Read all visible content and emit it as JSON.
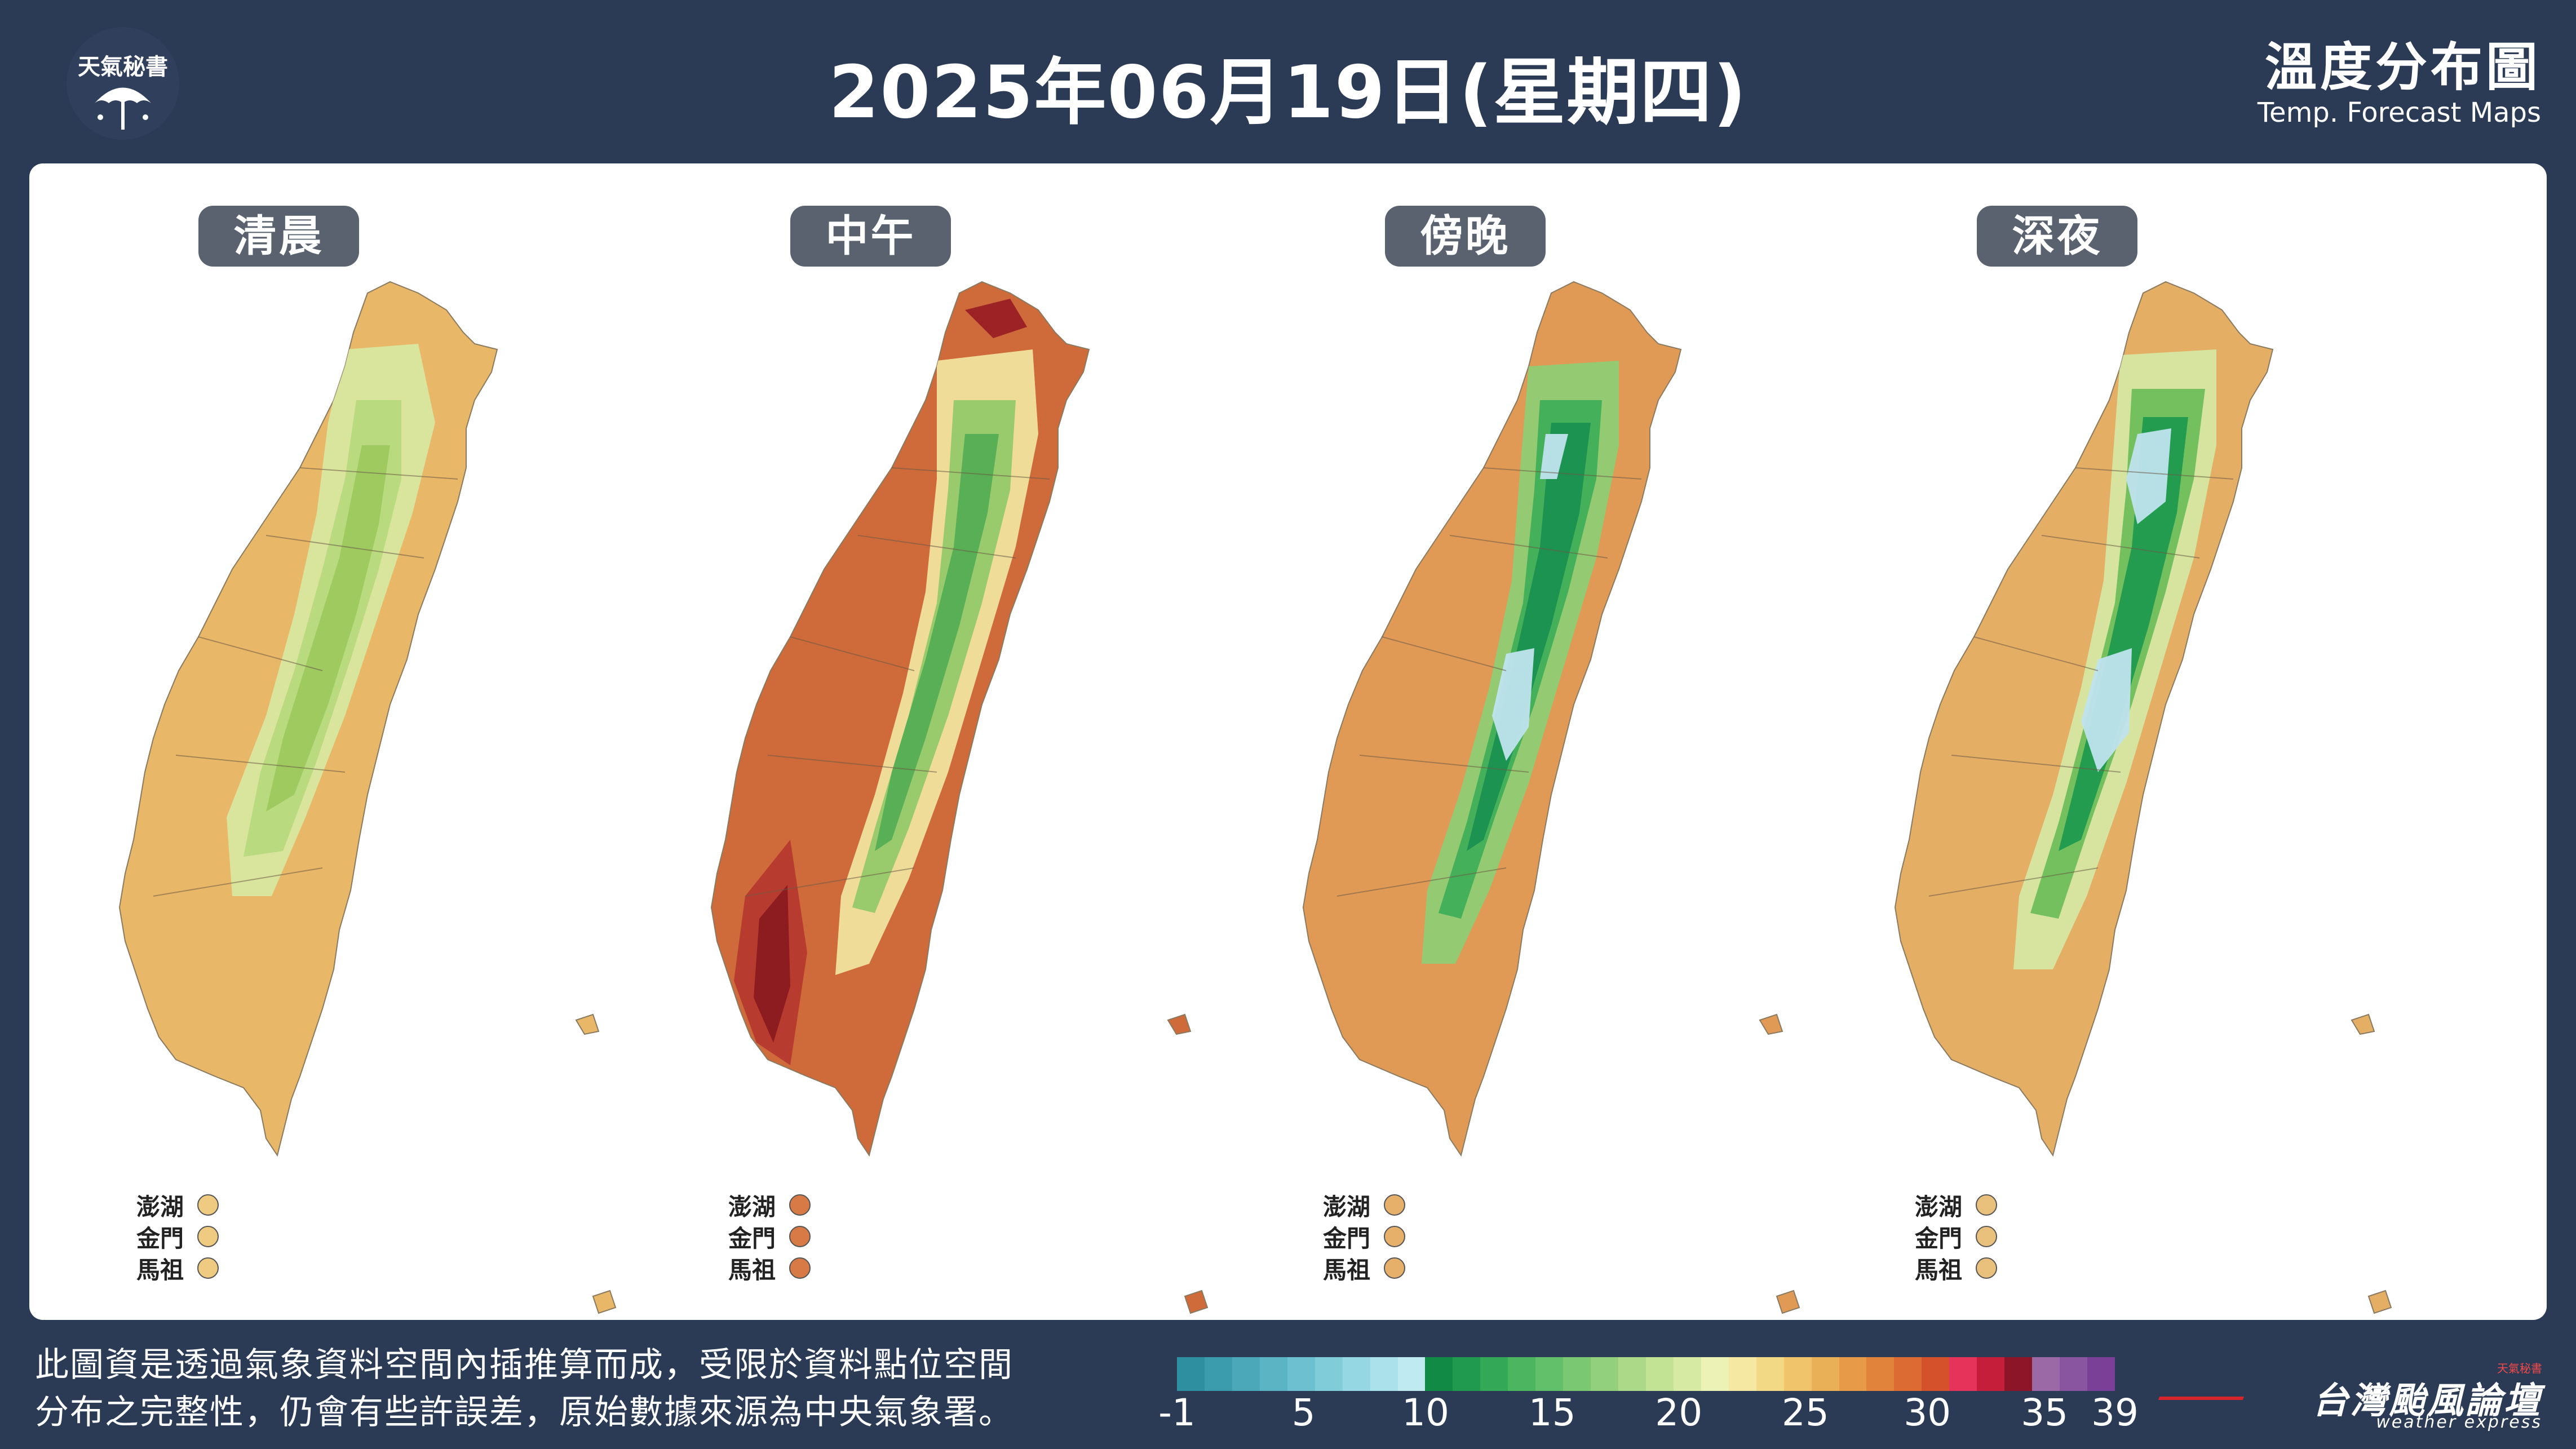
{
  "header": {
    "logo_text": "天氣秘書",
    "date_title": "2025年06月19日(星期四)",
    "map_title_zh": "溫度分布圖",
    "map_title_en": "Temp. Forecast Maps"
  },
  "periods": [
    {
      "label": "清晨",
      "island_color": "#eecb80",
      "theme": "dawn"
    },
    {
      "label": "中午",
      "island_color": "#d87a45",
      "theme": "noon"
    },
    {
      "label": "傍晚",
      "island_color": "#e7b06a",
      "theme": "evening"
    },
    {
      "label": "深夜",
      "island_color": "#e9c07c",
      "theme": "night"
    }
  ],
  "islands": [
    "澎湖",
    "金門",
    "馬祖"
  ],
  "footer": {
    "note_line1": "此圖資是透過氣象資料空間內插推算而成，受限於資料點位空間",
    "note_line2": "分布之完整性，仍會有些許誤差，原始數據來源為中央氣象署。"
  },
  "color_scale": {
    "colors": [
      "#2e8fa0",
      "#3a9cad",
      "#4aa8b9",
      "#5bb4c4",
      "#6dc0cf",
      "#80ccd9",
      "#95d7e3",
      "#aae1eb",
      "#bfeaf2",
      "#118a45",
      "#1f9a4e",
      "#33a857",
      "#4bb560",
      "#62bf6a",
      "#7bc873",
      "#93d07d",
      "#abd988",
      "#c2e294",
      "#d7eaa3",
      "#ecf2b6",
      "#f4e8a3",
      "#f2d985",
      "#efc46a",
      "#eab058",
      "#e79a48",
      "#e2833c",
      "#dc6a33",
      "#d4512b",
      "#e6335a",
      "#c41e3a",
      "#8c1527",
      "#9b6aa6",
      "#8a55a0",
      "#7a3f97"
    ],
    "tick_labels": [
      "-1",
      "5",
      "10",
      "15",
      "20",
      "25",
      "30",
      "35",
      "39"
    ]
  },
  "brand": {
    "tiny": "天氣秘書",
    "name_zh": "台灣颱風論壇",
    "name_en": "weather express"
  }
}
